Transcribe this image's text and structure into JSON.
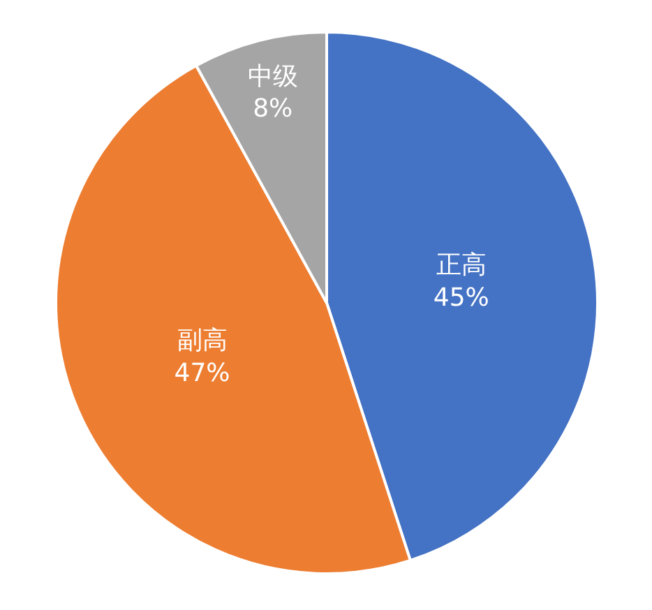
{
  "chart_data": {
    "type": "pie",
    "categories": [
      "正高",
      "副高",
      "中级"
    ],
    "values": [
      45,
      47,
      8
    ],
    "value_labels": [
      "45%",
      "47%",
      "8%"
    ],
    "colors": [
      "#4472c4",
      "#ed7d31",
      "#a5a5a5"
    ],
    "legend": false
  }
}
